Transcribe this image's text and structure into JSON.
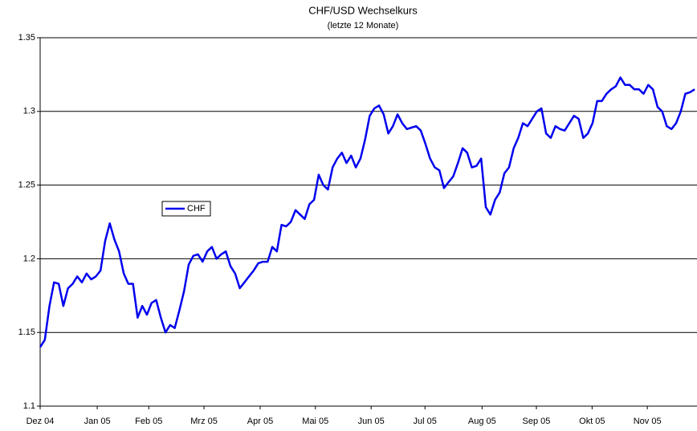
{
  "chart_data": {
    "type": "line",
    "title": "CHF/USD Wechselkurs",
    "subtitle": "(letzte 12 Monate)",
    "series": [
      {
        "name": "CHF",
        "color": "#0000ee",
        "values": [
          1.14,
          1.145,
          1.168,
          1.184,
          1.183,
          1.168,
          1.18,
          1.183,
          1.188,
          1.184,
          1.19,
          1.186,
          1.188,
          1.192,
          1.212,
          1.224,
          1.213,
          1.205,
          1.19,
          1.183,
          1.183,
          1.16,
          1.168,
          1.162,
          1.17,
          1.172,
          1.16,
          1.15,
          1.155,
          1.153,
          1.165,
          1.178,
          1.196,
          1.202,
          1.203,
          1.198,
          1.205,
          1.208,
          1.2,
          1.203,
          1.205,
          1.195,
          1.19,
          1.18,
          1.184,
          1.188,
          1.192,
          1.197,
          1.198,
          1.198,
          1.208,
          1.205,
          1.223,
          1.222,
          1.225,
          1.233,
          1.23,
          1.227,
          1.237,
          1.24,
          1.257,
          1.25,
          1.247,
          1.262,
          1.268,
          1.272,
          1.265,
          1.27,
          1.262,
          1.268,
          1.281,
          1.297,
          1.302,
          1.304,
          1.298,
          1.285,
          1.29,
          1.298,
          1.292,
          1.288,
          1.289,
          1.29,
          1.287,
          1.278,
          1.268,
          1.262,
          1.26,
          1.248,
          1.252,
          1.256,
          1.265,
          1.275,
          1.272,
          1.262,
          1.263,
          1.268,
          1.235,
          1.23,
          1.24,
          1.245,
          1.258,
          1.262,
          1.275,
          1.282,
          1.292,
          1.29,
          1.295,
          1.3,
          1.302,
          1.285,
          1.282,
          1.29,
          1.288,
          1.287,
          1.292,
          1.297,
          1.295,
          1.282,
          1.285,
          1.292,
          1.307,
          1.307,
          1.312,
          1.315,
          1.317,
          1.323,
          1.318,
          1.318,
          1.315,
          1.315,
          1.312,
          1.318,
          1.315,
          1.303,
          1.3,
          1.29,
          1.288,
          1.292,
          1.3,
          1.312,
          1.313,
          1.315
        ]
      }
    ],
    "xlim": [
      0,
      141.5
    ],
    "xticks": [
      {
        "value": 0,
        "label": "Dez 04"
      },
      {
        "value": 12.3,
        "label": "Jan 05"
      },
      {
        "value": 23.4,
        "label": "Feb 05"
      },
      {
        "value": 35.3,
        "label": "Mrz 05"
      },
      {
        "value": 47.4,
        "label": "Apr 05"
      },
      {
        "value": 59.3,
        "label": "Mai 05"
      },
      {
        "value": 71.3,
        "label": "Jun 05"
      },
      {
        "value": 82.9,
        "label": "Jul 05"
      },
      {
        "value": 95.2,
        "label": "Aug 05"
      },
      {
        "value": 106.9,
        "label": "Sep 05"
      },
      {
        "value": 118.9,
        "label": "Okt 05"
      },
      {
        "value": 130.8,
        "label": "Nov 05"
      }
    ],
    "ylim": [
      1.1,
      1.35
    ],
    "yticks": [
      1.1,
      1.15,
      1.2,
      1.25,
      1.3,
      1.35
    ],
    "grid": true
  }
}
